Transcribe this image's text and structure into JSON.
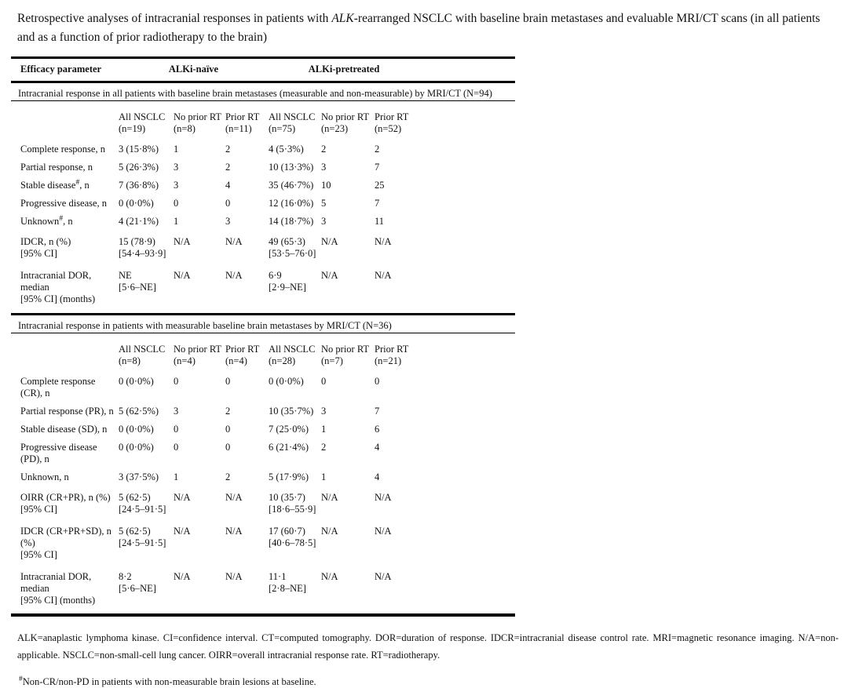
{
  "title": {
    "pre": "Retrospective analyses of intracranial responses in patients with ",
    "italic": "ALK",
    "post": "-rearranged NSCLC with baseline brain metastases and evaluable MRI/CT scans (in all patients and as a function of prior radiotherapy to the brain)"
  },
  "table": {
    "header": {
      "efficacy": "Efficacy parameter",
      "group1": "ALKi-naïve",
      "group2": "ALKi-pretreated"
    },
    "sections": [
      {
        "heading": "Intracranial response in all patients with baseline brain metastases (measurable and non-measurable) by MRI/CT (N=94)",
        "columns": [
          "All NSCLC\n(n=19)",
          "No prior RT\n(n=8)",
          "Prior RT\n(n=11)",
          "All NSCLC\n(n=75)",
          "No prior RT\n(n=23)",
          "Prior RT\n(n=52)"
        ],
        "rows": [
          {
            "label": "Complete response, n",
            "cells": [
              "3 (15·8%)",
              "1",
              "2",
              "4 (5·3%)",
              "2",
              "2"
            ]
          },
          {
            "label": "Partial response, n",
            "cells": [
              "5 (26·3%)",
              "3",
              "2",
              "10 (13·3%)",
              "3",
              "7"
            ]
          },
          {
            "label": "Stable disease",
            "sup": "#",
            "label_end": ", n",
            "cells": [
              "7 (36·8%)",
              "3",
              "4",
              "35 (46·7%)",
              "10",
              "25"
            ]
          },
          {
            "label": "Progressive disease, n",
            "cells": [
              "0 (0·0%)",
              "0",
              "0",
              "12 (16·0%)",
              "5",
              "7"
            ]
          },
          {
            "label": "Unknown",
            "sup": "#",
            "label_end": ", n",
            "cells": [
              "4 (21·1%)",
              "1",
              "3",
              "14 (18·7%)",
              "3",
              "11"
            ]
          },
          {
            "label": "IDCR, n (%)\n[95% CI]",
            "multi": true,
            "cells": [
              "15 (78·9)\n[54·4–93·9]",
              "N/A",
              "N/A",
              "49 (65·3)\n[53·5–76·0]",
              "N/A",
              "N/A"
            ]
          },
          {
            "label": "Intracranial DOR, median\n[95% CI] (months)",
            "multi": true,
            "cells": [
              "NE\n[5·6–NE]",
              "N/A",
              "N/A",
              "6·9\n[2·9–NE]",
              "N/A",
              "N/A"
            ]
          }
        ]
      },
      {
        "heading": "Intracranial response in patients with measurable baseline brain metastases by MRI/CT (N=36)",
        "columns": [
          "All NSCLC\n(n=8)",
          "No prior RT\n(n=4)",
          "Prior RT\n(n=4)",
          "All NSCLC\n(n=28)",
          "No prior RT\n(n=7)",
          "Prior RT\n(n=21)"
        ],
        "rows": [
          {
            "label": "Complete response (CR), n",
            "cells": [
              "0 (0·0%)",
              "0",
              "0",
              "0 (0·0%)",
              "0",
              "0"
            ]
          },
          {
            "label": "Partial response (PR), n",
            "cells": [
              "5 (62·5%)",
              "3",
              "2",
              "10 (35·7%)",
              "3",
              "7"
            ]
          },
          {
            "label": "Stable disease (SD), n",
            "cells": [
              "0 (0·0%)",
              "0",
              "0",
              "7 (25·0%)",
              "1",
              "6"
            ]
          },
          {
            "label": "Progressive disease (PD), n",
            "cells": [
              "0 (0·0%)",
              "0",
              "0",
              "6 (21·4%)",
              "2",
              "4"
            ]
          },
          {
            "label": "Unknown, n",
            "cells": [
              "3 (37·5%)",
              "1",
              "2",
              "5 (17·9%)",
              "1",
              "4"
            ]
          },
          {
            "label": "OIRR (CR+PR), n (%)\n[95% CI]",
            "multi": true,
            "cells": [
              "5 (62·5)\n[24·5–91·5]",
              "N/A",
              "N/A",
              "10 (35·7)\n[18·6–55·9]",
              "N/A",
              "N/A"
            ]
          },
          {
            "label": "IDCR (CR+PR+SD), n (%)\n[95% CI]",
            "multi": true,
            "cells": [
              "5 (62·5)\n[24·5–91·5]",
              "N/A",
              "N/A",
              "17 (60·7)\n[40·6–78·5]",
              "N/A",
              "N/A"
            ]
          },
          {
            "label": "Intracranial DOR, median\n[95% CI] (months)",
            "multi": true,
            "cells": [
              "8·2\n[5·6–NE]",
              "N/A",
              "N/A",
              "11·1\n[2·8–NE]",
              "N/A",
              "N/A"
            ]
          }
        ]
      }
    ]
  },
  "footer": {
    "abbreviations": "ALK=anaplastic lymphoma kinase. CI=confidence interval. CT=computed tomography. DOR=duration of response. IDCR=intracranial disease control rate. MRI=magnetic resonance imaging. N/A=non-applicable. NSCLC=non-small-cell lung cancer. OIRR=overall intracranial response rate. RT=radiotherapy.",
    "footnote_symbol": "#",
    "footnote": "Non-CR/non-PD in patients with non-measurable brain lesions at baseline."
  }
}
